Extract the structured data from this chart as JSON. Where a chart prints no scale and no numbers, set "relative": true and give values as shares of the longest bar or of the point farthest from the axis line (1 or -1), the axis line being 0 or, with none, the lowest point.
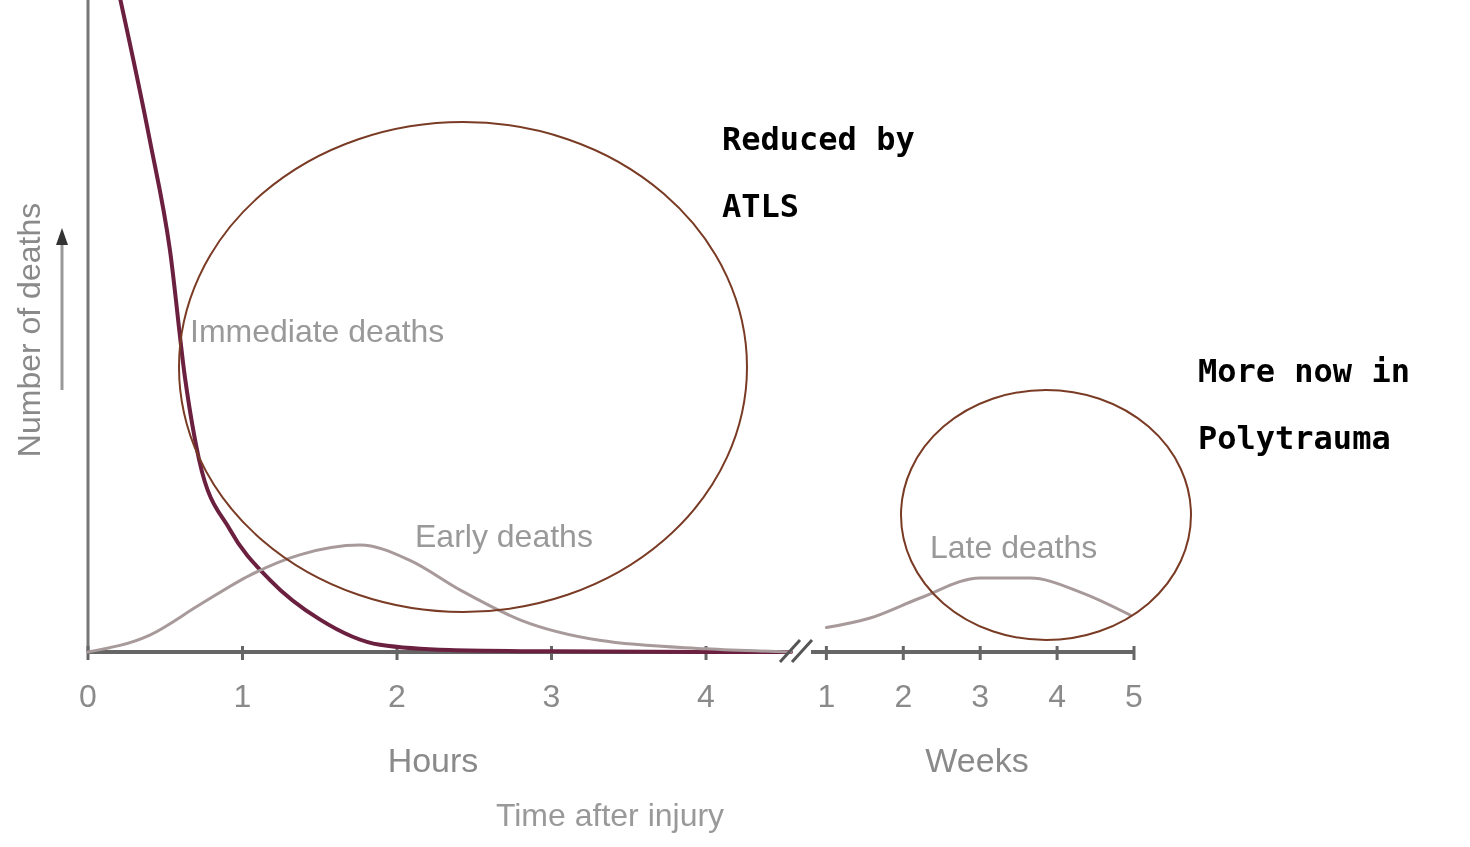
{
  "chart_data": [
    {
      "type": "line",
      "relative": true,
      "xlabel": "Hours",
      "ylabel": "Number of deaths",
      "xlim": [
        0,
        4.55
      ],
      "xticks": [
        0,
        1,
        2,
        3,
        4
      ],
      "series": [
        {
          "name": "Immediate deaths",
          "color": "#6b2040",
          "x": [
            0.21,
            0.4,
            0.53,
            0.63,
            0.72,
            0.92,
            1.18,
            1.5,
            1.89,
            2.34,
            3,
            4,
            4.55
          ],
          "values": [
            1,
            0.785,
            0.617,
            0.417,
            0.294,
            0.187,
            0.11,
            0.05,
            0.011,
            0.003,
            0.001,
            0,
            0
          ]
        },
        {
          "name": "Early deaths",
          "color": "#a89a9a",
          "x": [
            0,
            0.4,
            0.72,
            1.05,
            1.37,
            1.76,
            2.08,
            2.41,
            2.8,
            3.31,
            4,
            4.55
          ],
          "values": [
            0,
            0.026,
            0.072,
            0.118,
            0.149,
            0.164,
            0.141,
            0.095,
            0.049,
            0.018,
            0.005,
            0
          ]
        }
      ],
      "annotations": [
        "Reduced by\nATLS",
        "Time after injury"
      ]
    },
    {
      "type": "line",
      "relative": true,
      "xlabel": "Weeks",
      "xlim": [
        0.8,
        5
      ],
      "xticks": [
        1,
        2,
        3,
        4,
        5
      ],
      "series": [
        {
          "name": "Late deaths",
          "color": "#a89a9a",
          "x": [
            1,
            1.57,
            2.22,
            3,
            3.65,
            4.3,
            4.95
          ],
          "values": [
            0.33,
            0.46,
            0.73,
            1,
            1,
            0.81,
            0.5
          ]
        }
      ],
      "annotations": [
        "More now in\nPolytrauma"
      ]
    }
  ]
}
